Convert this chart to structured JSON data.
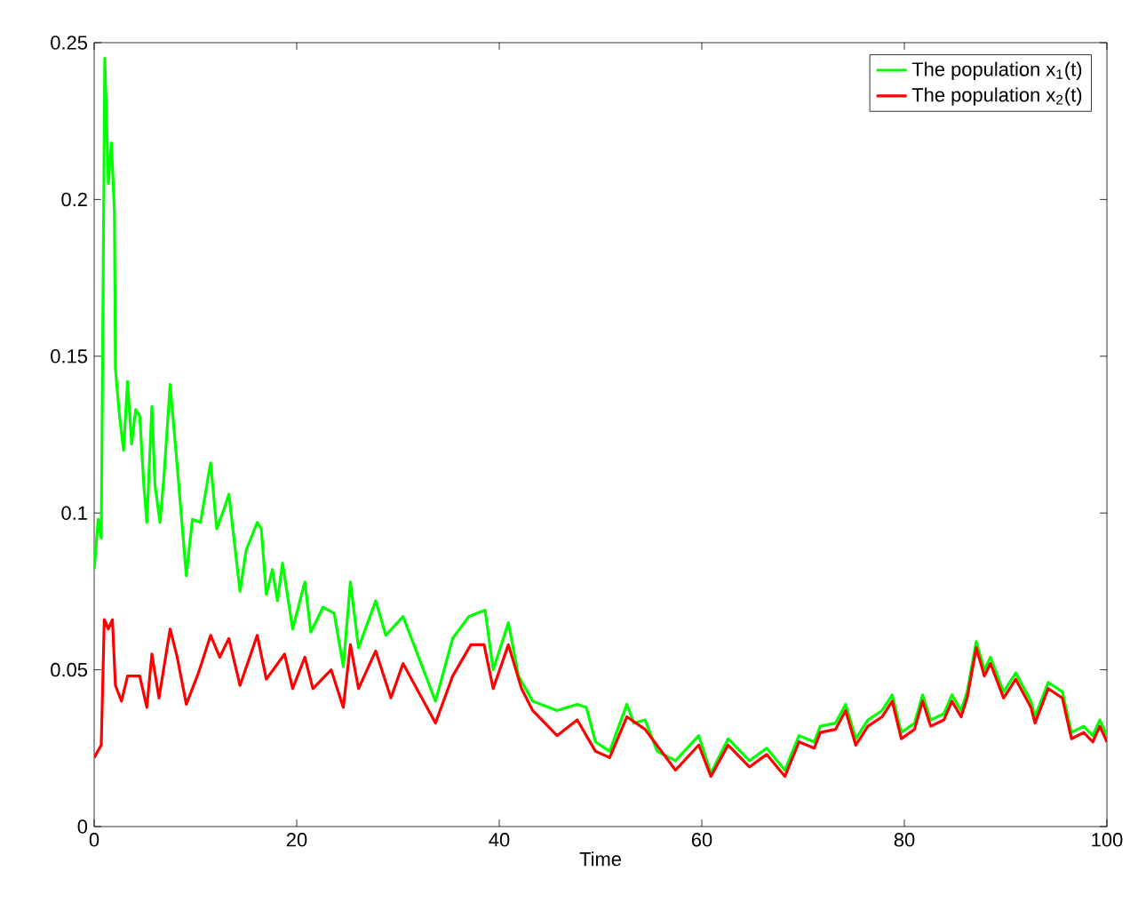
{
  "chart_data": {
    "type": "line",
    "xlabel": "Time",
    "xlim": [
      0,
      100
    ],
    "xticks": [
      0,
      20,
      40,
      60,
      80,
      100
    ],
    "ylim": [
      0,
      0.25
    ],
    "yticks": [
      0,
      0.05,
      0.1,
      0.15,
      0.2,
      0.25
    ],
    "grid": false,
    "legend": "top right",
    "marker": "none",
    "line_style": "solid",
    "series": [
      {
        "name": "The population x$_{1}$(t)",
        "color": "#00ff00",
        "x": [
          0,
          0.4,
          0.7,
          1.05,
          1.4,
          1.7,
          2.0,
          2.1,
          2.5,
          2.9,
          3.3,
          3.7,
          4.1,
          4.5,
          4.9,
          5.2,
          5.7,
          6.0,
          6.5,
          6.9,
          7.5,
          8.2,
          9.1,
          9.7,
          10.5,
          11.5,
          12.1,
          12.8,
          13.3,
          14.4,
          15.0,
          16.1,
          16.5,
          17.0,
          17.6,
          18.1,
          18.6,
          19.6,
          20.8,
          21.4,
          22.6,
          23.7,
          24.6,
          25.3,
          26.1,
          27.8,
          28.8,
          30.5,
          33.7,
          35.4,
          37.0,
          37.8,
          38.6,
          39.4,
          40.9,
          41.9,
          43.3,
          45.7,
          47.7,
          48.6,
          49.5,
          50.9,
          52.6,
          53.3,
          54.4,
          55.6,
          57.4,
          59.7,
          60.9,
          62.6,
          64.7,
          66.4,
          68.2,
          69.6,
          71.1,
          71.7,
          73.2,
          74.2,
          75.2,
          76.4,
          77.8,
          78.8,
          79.7,
          81.0,
          81.8,
          82.6,
          83.9,
          84.7,
          85.6,
          86.2,
          87.1,
          87.9,
          88.5,
          89.8,
          91.0,
          92.5,
          92.9,
          94.2,
          95.6,
          96.5,
          97.7,
          98.6,
          99.3,
          100
        ],
        "values": [
          0.082,
          0.098,
          0.092,
          0.245,
          0.205,
          0.218,
          0.196,
          0.146,
          0.131,
          0.12,
          0.142,
          0.122,
          0.133,
          0.131,
          0.109,
          0.097,
          0.134,
          0.109,
          0.097,
          0.112,
          0.141,
          0.115,
          0.08,
          0.098,
          0.097,
          0.116,
          0.095,
          0.101,
          0.106,
          0.075,
          0.088,
          0.097,
          0.095,
          0.074,
          0.082,
          0.072,
          0.084,
          0.063,
          0.078,
          0.062,
          0.07,
          0.068,
          0.051,
          0.078,
          0.057,
          0.072,
          0.061,
          0.067,
          0.04,
          0.06,
          0.067,
          0.068,
          0.069,
          0.05,
          0.065,
          0.048,
          0.04,
          0.037,
          0.039,
          0.038,
          0.027,
          0.024,
          0.039,
          0.033,
          0.034,
          0.024,
          0.021,
          0.029,
          0.017,
          0.028,
          0.021,
          0.025,
          0.018,
          0.029,
          0.027,
          0.032,
          0.033,
          0.039,
          0.028,
          0.034,
          0.037,
          0.042,
          0.03,
          0.033,
          0.042,
          0.034,
          0.036,
          0.042,
          0.037,
          0.043,
          0.059,
          0.05,
          0.054,
          0.043,
          0.049,
          0.04,
          0.035,
          0.046,
          0.043,
          0.03,
          0.032,
          0.029,
          0.034,
          0.029
        ]
      },
      {
        "name": "The population x$_{2}$(t)",
        "color": "#ff0000",
        "x": [
          0,
          0.7,
          1.0,
          1.4,
          1.8,
          2.1,
          2.7,
          3.3,
          4.5,
          5.2,
          5.7,
          6.4,
          7.5,
          8.2,
          9.1,
          10.3,
          11.5,
          12.4,
          13.3,
          14.4,
          16.1,
          17.0,
          18.8,
          19.6,
          20.8,
          21.6,
          23.4,
          24.6,
          25.3,
          26.1,
          27.8,
          29.3,
          30.5,
          33.7,
          35.4,
          37.2,
          38.5,
          39.4,
          40.9,
          42.2,
          43.3,
          45.7,
          47.7,
          49.5,
          50.9,
          52.6,
          54.4,
          57.4,
          59.7,
          60.9,
          62.6,
          64.7,
          66.4,
          68.2,
          69.6,
          71.1,
          71.7,
          73.2,
          74.2,
          75.2,
          76.4,
          77.8,
          78.8,
          79.7,
          81.0,
          81.8,
          82.6,
          83.9,
          84.7,
          85.6,
          86.2,
          87.1,
          87.9,
          88.5,
          89.8,
          91.0,
          92.5,
          92.9,
          94.2,
          95.6,
          96.5,
          97.7,
          98.6,
          99.3,
          100
        ],
        "values": [
          0.022,
          0.026,
          0.066,
          0.063,
          0.066,
          0.045,
          0.04,
          0.048,
          0.048,
          0.038,
          0.055,
          0.041,
          0.063,
          0.054,
          0.039,
          0.049,
          0.061,
          0.054,
          0.06,
          0.045,
          0.061,
          0.047,
          0.055,
          0.044,
          0.054,
          0.044,
          0.05,
          0.038,
          0.058,
          0.044,
          0.056,
          0.041,
          0.052,
          0.033,
          0.048,
          0.058,
          0.058,
          0.044,
          0.058,
          0.044,
          0.037,
          0.029,
          0.034,
          0.024,
          0.022,
          0.035,
          0.031,
          0.018,
          0.026,
          0.016,
          0.026,
          0.019,
          0.023,
          0.016,
          0.027,
          0.025,
          0.03,
          0.031,
          0.037,
          0.026,
          0.032,
          0.035,
          0.04,
          0.028,
          0.031,
          0.04,
          0.032,
          0.034,
          0.04,
          0.035,
          0.041,
          0.057,
          0.048,
          0.052,
          0.041,
          0.047,
          0.038,
          0.033,
          0.044,
          0.041,
          0.028,
          0.03,
          0.027,
          0.032,
          0.027
        ]
      }
    ]
  }
}
